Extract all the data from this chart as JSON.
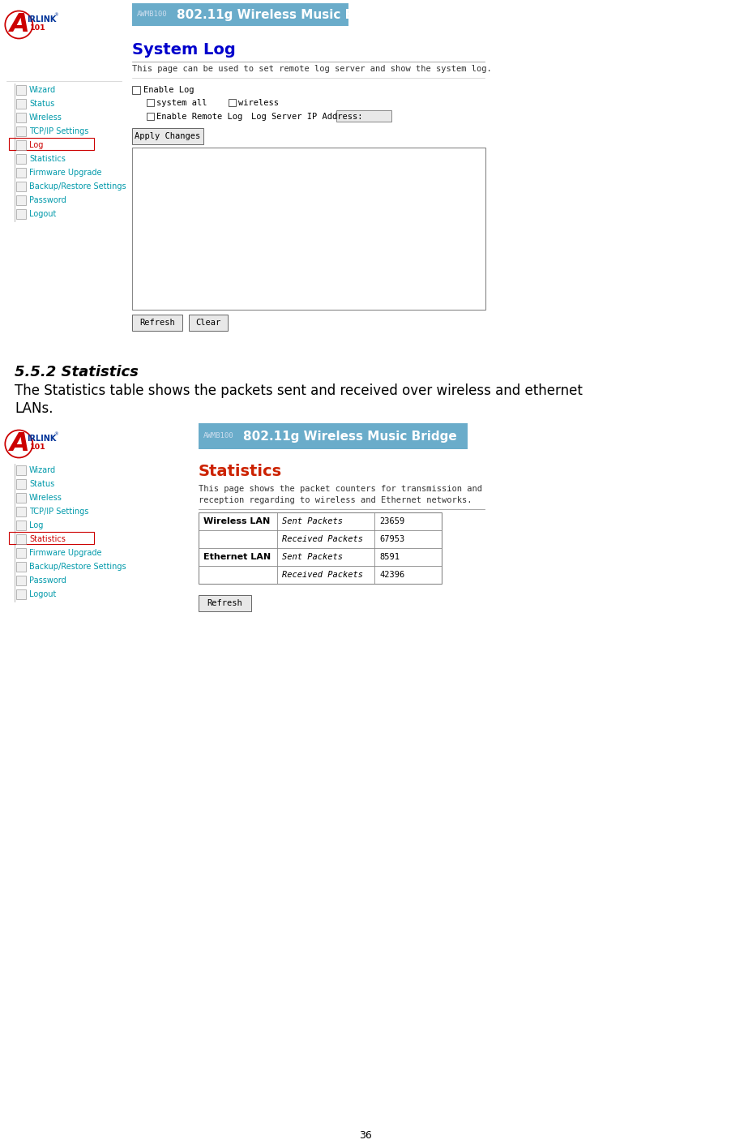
{
  "bg_color": "#ffffff",
  "page_width": 9.02,
  "page_height": 14.11,
  "dpi": 100,
  "header_bar_color": "#6aacca",
  "header_bar_text_awmb": "AWMB100",
  "header_bar_text_main": "802.11g Wireless Music Bridge",
  "section_title_552": "5.5.2 Statistics",
  "section_body_line1": "The Statistics table shows the packets sent and received over wireless and ethernet",
  "section_body_line2": "LANs.",
  "syslog_title": "System Log",
  "syslog_title_color": "#0000cc",
  "syslog_desc": "This page can be used to set remote log server and show the system log.",
  "syslog_enable_log": "Enable Log",
  "syslog_system_all": "system all",
  "syslog_wireless": "wireless",
  "syslog_enable_remote": "Enable Remote Log",
  "syslog_log_server": "Log Server IP Address:",
  "syslog_apply_btn": "Apply Changes",
  "syslog_refresh_btn": "Refresh",
  "syslog_clear_btn": "Clear",
  "stats_title": "Statistics",
  "stats_title_color": "#cc2200",
  "stats_desc1": "This page shows the packet counters for transmission and",
  "stats_desc2": "reception regarding to wireless and Ethernet networks.",
  "stats_table_border": "#888888",
  "stats_wireless_lan": "Wireless LAN",
  "stats_ethernet_lan": "Ethernet LAN",
  "stats_sent_packets": "Sent Packets",
  "stats_received_packets": "Received Packets",
  "stats_wireless_sent": "23659",
  "stats_wireless_received": "67953",
  "stats_ethernet_sent": "8591",
  "stats_ethernet_received": "42396",
  "stats_refresh_btn": "Refresh",
  "nav_items": [
    "Wizard",
    "Status",
    "Wireless",
    "TCP/IP Settings",
    "Log",
    "Statistics",
    "Firmware Upgrade",
    "Backup/Restore Settings",
    "Password",
    "Logout"
  ],
  "nav_color": "#0099aa",
  "nav_highlight_top": "Log",
  "nav_highlight_bottom": "Statistics",
  "nav_highlight_color": "#cc0000",
  "airlink_A_color": "#cc0000",
  "airlink_text_color": "#003399",
  "airlink_101_color": "#cc0000",
  "page_num": "36",
  "btn_border_color": "#888888",
  "btn_bg_color": "#e0e0e0",
  "checkbox_color": "#555555"
}
